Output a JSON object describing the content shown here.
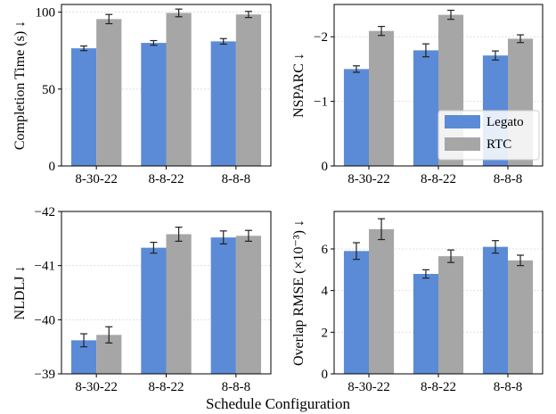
{
  "figure": {
    "xlabel": "Schedule Configuration"
  },
  "legend": {
    "entries": [
      "Legato",
      "RTC"
    ],
    "placement": "center-right (NSPARC panel)"
  },
  "colors": {
    "legato": "#5b8bd6",
    "rtc": "#a6a6a6",
    "grid": "#d9d9d9",
    "error_bar": "#222222"
  },
  "chart_data": [
    {
      "type": "bar",
      "panel": "top-left",
      "ylabel": "Completion Time (s) ↓",
      "categories": [
        "8-30-22",
        "8-8-22",
        "8-8-8"
      ],
      "ylim": [
        0,
        105
      ],
      "yticks": [
        0,
        50,
        100
      ],
      "ytick_labels": [
        "0",
        "50",
        "100"
      ],
      "inverted": false,
      "grid": "horizontal",
      "series": [
        {
          "name": "Legato",
          "values": [
            76.5,
            80,
            81
          ],
          "errors": [
            1.5,
            1.5,
            1.8
          ]
        },
        {
          "name": "RTC",
          "values": [
            95.5,
            99.5,
            98.5
          ],
          "errors": [
            3,
            2.5,
            2
          ]
        }
      ]
    },
    {
      "type": "bar",
      "panel": "top-right",
      "ylabel": "NSPARC ↓",
      "categories": [
        "8-30-22",
        "8-8-22",
        "8-8-8"
      ],
      "ylim": [
        0,
        -2.5
      ],
      "yticks": [
        0,
        -1,
        -2
      ],
      "ytick_labels": [
        "0",
        "−1",
        "−2"
      ],
      "inverted": true,
      "grid": "horizontal",
      "series": [
        {
          "name": "Legato",
          "values": [
            -1.5,
            -1.79,
            -1.71
          ],
          "errors": [
            0.05,
            0.1,
            0.07
          ]
        },
        {
          "name": "RTC",
          "values": [
            -2.09,
            -2.34,
            -1.97
          ],
          "errors": [
            0.07,
            0.07,
            0.06
          ]
        }
      ],
      "legend": "center-right"
    },
    {
      "type": "bar",
      "panel": "bottom-left",
      "ylabel": "NLDLJ ↓",
      "categories": [
        "8-30-22",
        "8-8-22",
        "8-8-8"
      ],
      "ylim": [
        -39,
        -42
      ],
      "yticks": [
        -39,
        -40,
        -41,
        -42
      ],
      "ytick_labels": [
        "−39",
        "−40",
        "−41",
        "−42"
      ],
      "inverted": true,
      "grid": "horizontal",
      "series": [
        {
          "name": "Legato",
          "values": [
            -39.62,
            -41.33,
            -41.52
          ],
          "errors": [
            0.12,
            0.1,
            0.12
          ]
        },
        {
          "name": "RTC",
          "values": [
            -39.72,
            -41.58,
            -41.55
          ],
          "errors": [
            0.15,
            0.13,
            0.1
          ]
        }
      ]
    },
    {
      "type": "bar",
      "panel": "bottom-right",
      "ylabel": "Overlap RMSE (×10⁻³) ↓",
      "categories": [
        "8-30-22",
        "8-8-22",
        "8-8-8"
      ],
      "ylim": [
        0,
        7.8
      ],
      "yticks": [
        0,
        2,
        4,
        6
      ],
      "ytick_labels": [
        "0",
        "2",
        "4",
        "6"
      ],
      "inverted": false,
      "grid": "horizontal",
      "series": [
        {
          "name": "Legato",
          "values": [
            5.9,
            4.8,
            6.1
          ],
          "errors": [
            0.4,
            0.2,
            0.3
          ]
        },
        {
          "name": "RTC",
          "values": [
            6.95,
            5.65,
            5.45
          ],
          "errors": [
            0.5,
            0.3,
            0.25
          ]
        }
      ]
    }
  ]
}
